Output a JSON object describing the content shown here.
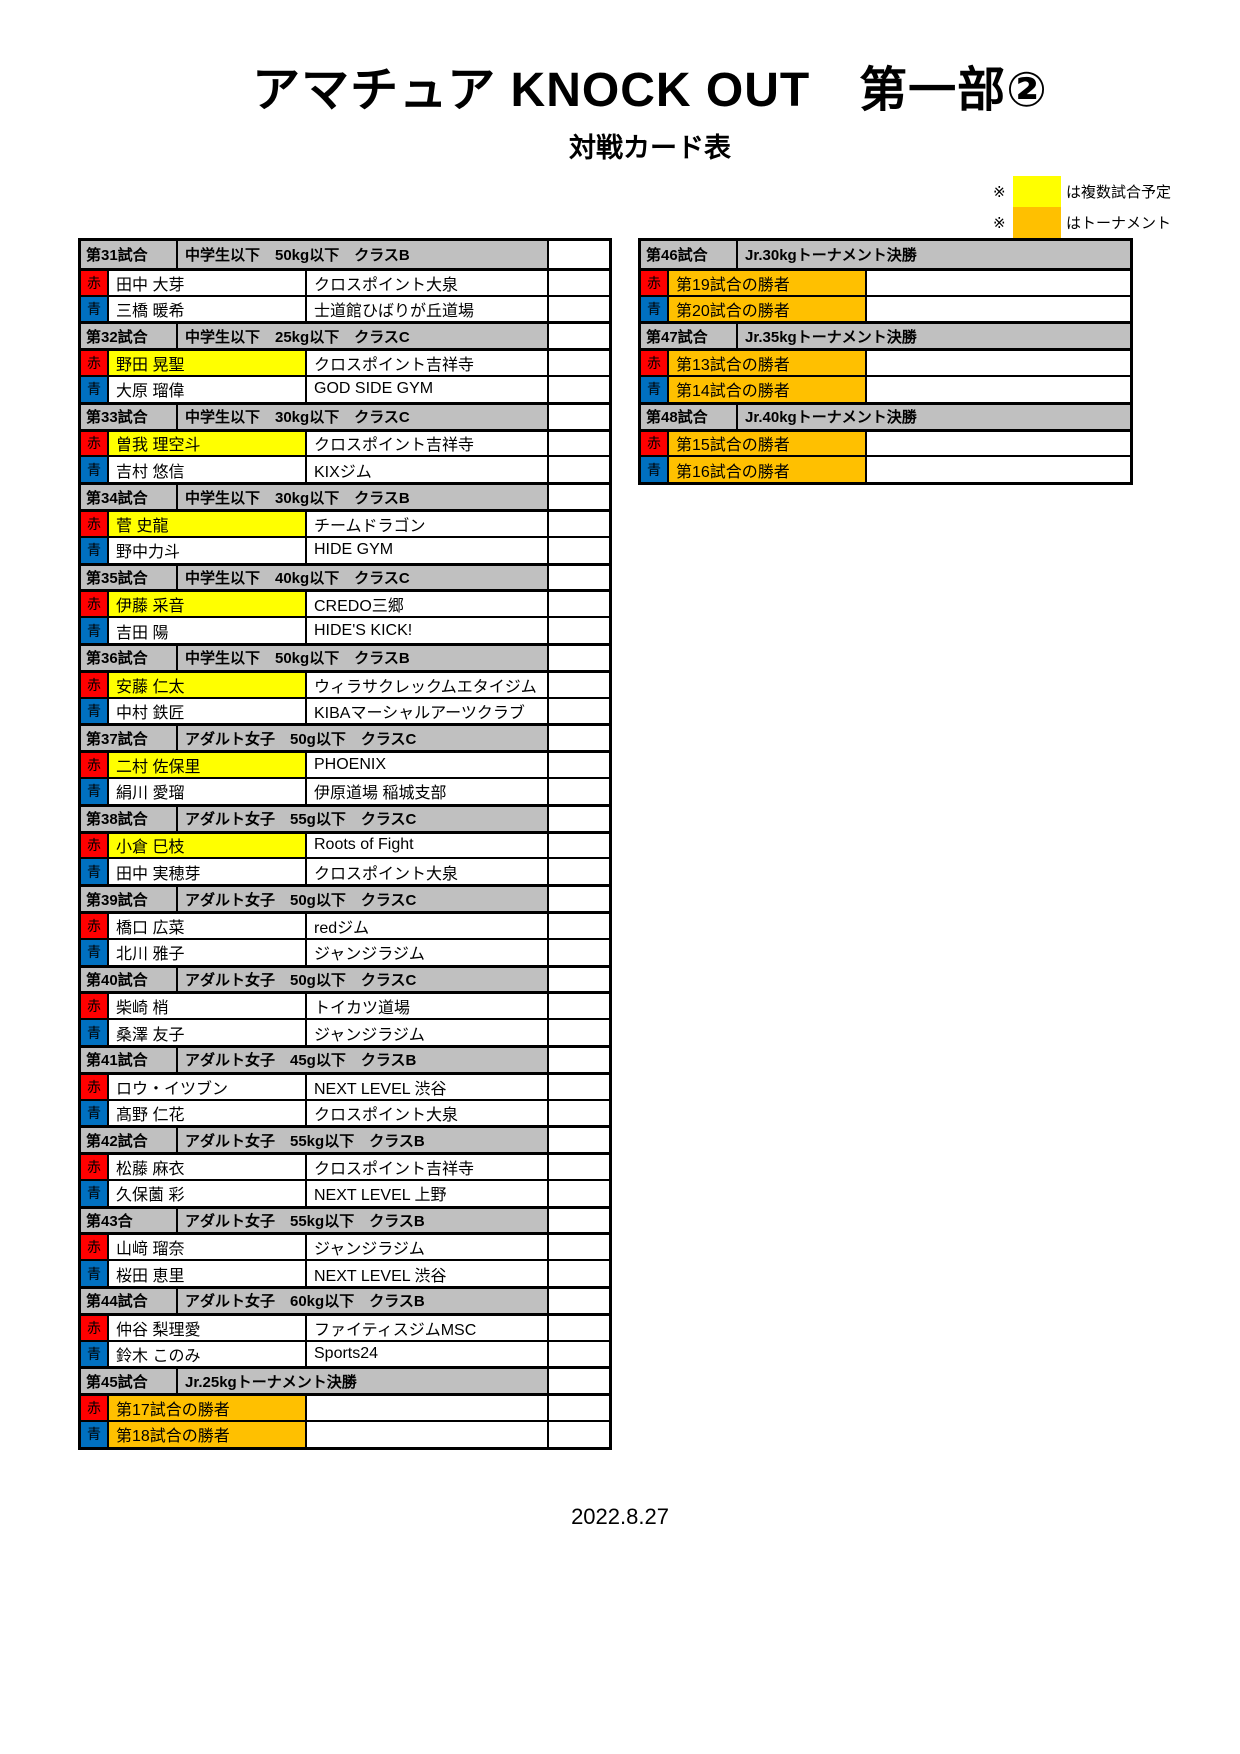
{
  "page": {
    "title": "アマチュア KNOCK OUT　第一部②",
    "subtitle": "対戦カード表",
    "footer_date": "2022.8.27"
  },
  "legend": {
    "marker": "※",
    "items": [
      {
        "label": "は複数試合予定",
        "color": "#FFFF00"
      },
      {
        "label": "はトーナメント",
        "color": "#FFC000"
      }
    ]
  },
  "corner_labels": {
    "red": "赤",
    "blue": "青"
  },
  "colors": {
    "red_corner": "#FF0000",
    "blue_corner": "#0070C0",
    "header_gray": "#C0C0C0",
    "highlight_yellow": "#FFFF00",
    "highlight_orange": "#FFC000"
  },
  "left_column_matches": [
    {
      "no": "第31試合",
      "category": "中学生以下　50kg以下　クラスB",
      "red": {
        "name": "田中 大芽",
        "gym": "クロスポイント大泉",
        "highlight": "none"
      },
      "blue": {
        "name": "三橋 暖希",
        "gym": "士道館ひばりが丘道場",
        "highlight": "none"
      }
    },
    {
      "no": "第32試合",
      "category": "中学生以下　25kg以下　クラスC",
      "red": {
        "name": "野田 晃聖",
        "gym": "クロスポイント吉祥寺",
        "highlight": "yellow"
      },
      "blue": {
        "name": "大原 瑠偉",
        "gym": "GOD SIDE GYM",
        "highlight": "none"
      }
    },
    {
      "no": "第33試合",
      "category": "中学生以下　30kg以下　クラスC",
      "red": {
        "name": "曽我 理空斗",
        "gym": "クロスポイント吉祥寺",
        "highlight": "yellow"
      },
      "blue": {
        "name": "吉村 悠信",
        "gym": "KIXジム",
        "highlight": "none"
      }
    },
    {
      "no": "第34試合",
      "category": "中学生以下　30kg以下　クラスB",
      "red": {
        "name": "菅 史龍",
        "gym": "チームドラゴン",
        "highlight": "yellow"
      },
      "blue": {
        "name": "野中力斗",
        "gym": "HIDE GYM",
        "highlight": "none"
      }
    },
    {
      "no": "第35試合",
      "category": "中学生以下　40kg以下　クラスC",
      "red": {
        "name": "伊藤 采音",
        "gym": "CREDO三郷",
        "highlight": "yellow"
      },
      "blue": {
        "name": "吉田 陽",
        "gym": "HIDE'S KICK!",
        "highlight": "none"
      }
    },
    {
      "no": "第36試合",
      "category": "中学生以下　50kg以下　クラスB",
      "red": {
        "name": "安藤 仁太",
        "gym": "ウィラサクレックムエタイジム",
        "highlight": "yellow"
      },
      "blue": {
        "name": "中村 鉄匠",
        "gym": "KIBAマーシャルアーツクラブ",
        "highlight": "none"
      }
    },
    {
      "no": "第37試合",
      "category": "アダルト女子　50g以下　クラスC",
      "red": {
        "name": "二村 佐保里",
        "gym": "PHOENIX",
        "highlight": "yellow"
      },
      "blue": {
        "name": "絹川 愛瑠",
        "gym": "伊原道場 稲城支部",
        "highlight": "none"
      }
    },
    {
      "no": "第38試合",
      "category": "アダルト女子　55g以下　クラスC",
      "red": {
        "name": "小倉 巳枝",
        "gym": "Roots of Fight",
        "highlight": "yellow"
      },
      "blue": {
        "name": "田中 実穂芽",
        "gym": "クロスポイント大泉",
        "highlight": "none"
      }
    },
    {
      "no": "第39試合",
      "category": "アダルト女子　50g以下　クラスC",
      "red": {
        "name": "橋口 広菜",
        "gym": "redジム",
        "highlight": "none"
      },
      "blue": {
        "name": "北川 雅子",
        "gym": "ジャンジラジム",
        "highlight": "none"
      }
    },
    {
      "no": "第40試合",
      "category": "アダルト女子　50g以下　クラスC",
      "red": {
        "name": "柴崎 梢",
        "gym": "トイカツ道場",
        "highlight": "none"
      },
      "blue": {
        "name": "桑澤 友子",
        "gym": "ジャンジラジム",
        "highlight": "none"
      }
    },
    {
      "no": "第41試合",
      "category": "アダルト女子　45g以下　クラスB",
      "red": {
        "name": "ロウ・イツブン",
        "gym": "NEXT LEVEL 渋谷",
        "highlight": "none"
      },
      "blue": {
        "name": "髙野 仁花",
        "gym": "クロスポイント大泉",
        "highlight": "none"
      }
    },
    {
      "no": "第42試合",
      "category": "アダルト女子　55kg以下　クラスB",
      "red": {
        "name": "松藤 麻衣",
        "gym": "クロスポイント吉祥寺",
        "highlight": "none"
      },
      "blue": {
        "name": "久保薗 彩",
        "gym": "NEXT LEVEL 上野",
        "highlight": "none"
      }
    },
    {
      "no": "第43合",
      "category": "アダルト女子　55kg以下　クラスB",
      "red": {
        "name": "山﨑 瑠奈",
        "gym": "ジャンジラジム",
        "highlight": "none"
      },
      "blue": {
        "name": "桜田 恵里",
        "gym": "NEXT LEVEL 渋谷",
        "highlight": "none"
      }
    },
    {
      "no": "第44試合",
      "category": "アダルト女子　60kg以下　クラスB",
      "red": {
        "name": "仲谷 梨理愛",
        "gym": "ファイティスジムMSC",
        "highlight": "none"
      },
      "blue": {
        "name": "鈴木 このみ",
        "gym": "Sports24",
        "highlight": "none"
      }
    },
    {
      "no": "第45試合",
      "category": "Jr.25kgトーナメント決勝",
      "red": {
        "name": "第17試合の勝者",
        "gym": "",
        "highlight": "orange"
      },
      "blue": {
        "name": "第18試合の勝者",
        "gym": "",
        "highlight": "orange"
      }
    }
  ],
  "right_column_matches": [
    {
      "no": "第46試合",
      "category": "Jr.30kgトーナメント決勝",
      "red": {
        "name": "第19試合の勝者",
        "gym": "",
        "highlight": "orange"
      },
      "blue": {
        "name": "第20試合の勝者",
        "gym": "",
        "highlight": "orange"
      }
    },
    {
      "no": "第47試合",
      "category": "Jr.35kgトーナメント決勝",
      "red": {
        "name": "第13試合の勝者",
        "gym": "",
        "highlight": "orange"
      },
      "blue": {
        "name": "第14試合の勝者",
        "gym": "",
        "highlight": "orange"
      }
    },
    {
      "no": "第48試合",
      "category": "Jr.40kgトーナメント決勝",
      "red": {
        "name": "第15試合の勝者",
        "gym": "",
        "highlight": "orange"
      },
      "blue": {
        "name": "第16試合の勝者",
        "gym": "",
        "highlight": "orange"
      }
    }
  ]
}
